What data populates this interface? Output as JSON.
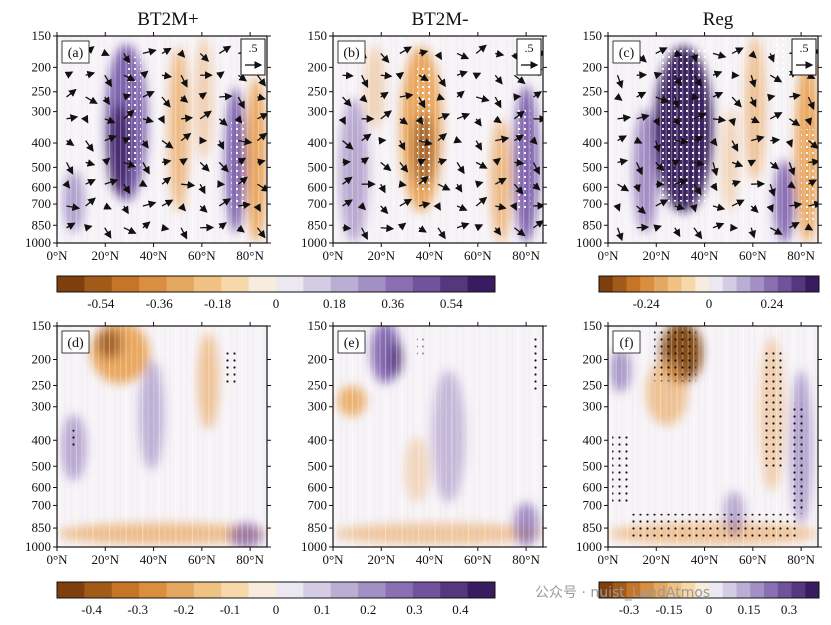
{
  "titles": [
    "BT2M+",
    "BT2M-",
    "Reg"
  ],
  "panel_labels": [
    "(a)",
    "(b)",
    "(c)",
    "(d)",
    "(e)",
    "(f)"
  ],
  "arrow_key_label": ".5",
  "pressure_ticks": [
    150,
    200,
    250,
    300,
    400,
    500,
    600,
    700,
    850,
    1000
  ],
  "lat_ticks": [
    "0°N",
    "20°N",
    "40°N",
    "60°N",
    "80°N"
  ],
  "colorbars": [
    {
      "ticks": [
        "-0.54",
        "-0.36",
        "-0.18",
        "0",
        "0.18",
        "0.36",
        "0.54"
      ],
      "values": [
        -0.54,
        -0.36,
        -0.18,
        0,
        0.18,
        0.36,
        0.54
      ]
    },
    {
      "ticks": [
        "-0.24",
        "0",
        "0.24"
      ],
      "values": [
        -0.24,
        0,
        0.24
      ]
    },
    {
      "ticks": [
        "-0.4",
        "-0.3",
        "-0.2",
        "-0.1",
        "0",
        "0.1",
        "0.2",
        "0.3",
        "0.4"
      ],
      "values": [
        -0.4,
        -0.3,
        -0.2,
        -0.1,
        0,
        0.1,
        0.2,
        0.3,
        0.4
      ]
    },
    {
      "ticks": [
        "-0.3",
        "-0.15",
        "0",
        "0.15",
        "0.3"
      ],
      "values": [
        -0.3,
        -0.15,
        0,
        0.15,
        0.3
      ]
    }
  ],
  "watermark": "公众号 · nuist_LandAtmos",
  "colors": {
    "brown": "#7a3a06",
    "orange": "#e9a04e",
    "white": "#f7f4f8",
    "purple": "#6a4aa0",
    "darkpurple": "#2e1356"
  },
  "chart_data": [
    {
      "type": "heatmap",
      "panel": "(a)",
      "title": "BT2M+",
      "x": "latitude 0–85°N",
      "y": "pressure 150–1000 hPa",
      "vectors": true,
      "features": "purple core 15–35°N mid-troposphere; purple 65–80°N; orange 50–60°N and near 80°N"
    },
    {
      "type": "heatmap",
      "panel": "(b)",
      "title": "BT2M-",
      "x": "latitude 0–85°N",
      "y": "pressure 150–1000 hPa",
      "vectors": true,
      "features": "orange core 25–40°N; purple 75–85°N"
    },
    {
      "type": "heatmap",
      "panel": "(c)",
      "title": "Reg",
      "x": "latitude 0–85°N",
      "y": "pressure 150–1000 hPa",
      "vectors": true,
      "features": "deep purple core 20–40°N stippled; orange 60–85°N"
    },
    {
      "type": "heatmap",
      "panel": "(d)",
      "x": "latitude 0–85°N",
      "y": "pressure 150–1000 hPa",
      "features": "orange upper 10–30°N; weak purple mid; dotted 65–70°N 200–300 hPa"
    },
    {
      "type": "heatmap",
      "panel": "(e)",
      "x": "latitude 0–85°N",
      "y": "pressure 150–1000 hPa",
      "features": "purple upper 20–35°N; orange 0–10°N 250–300 hPa"
    },
    {
      "type": "heatmap",
      "panel": "(f)",
      "x": "latitude 0–85°N",
      "y": "pressure 150–1000 hPa",
      "features": "brown upper 20–35°N stippled; dotted columns 60–80°N"
    }
  ]
}
